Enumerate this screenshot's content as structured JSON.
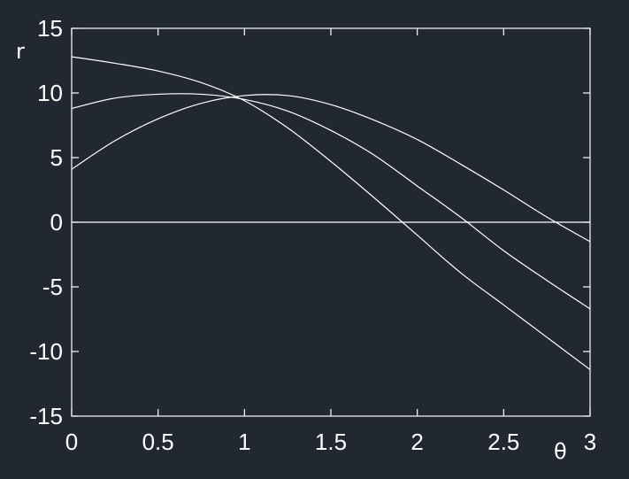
{
  "colors": {
    "background": "#222831",
    "foreground": "#ffffff"
  },
  "chart_data": {
    "type": "line",
    "title": "",
    "xlabel": "θ",
    "ylabel": "r",
    "xlim": [
      0,
      3
    ],
    "ylim": [
      -15,
      15
    ],
    "grid": false,
    "x_ticks": [
      0,
      0.5,
      1,
      1.5,
      2,
      2.5,
      3
    ],
    "x_tick_labels": [
      "0",
      "0.5",
      "1",
      "1.5",
      "2",
      "2.5",
      "3"
    ],
    "y_ticks": [
      -15,
      -10,
      -5,
      0,
      5,
      10,
      15
    ],
    "y_tick_labels": [
      "-15",
      "-10",
      "-5",
      "0",
      "5",
      "10",
      "15"
    ],
    "zero_line": 0,
    "x": [
      0,
      0.25,
      0.5,
      0.75,
      1,
      1.25,
      1.5,
      1.75,
      2,
      2.25,
      2.5,
      2.75,
      3
    ],
    "series": [
      {
        "values": [
          12.8,
          12.3,
          11.7,
          10.8,
          9.4,
          7.3,
          4.7,
          1.9,
          -1.0,
          -3.9,
          -6.4,
          -8.9,
          -11.4
        ]
      },
      {
        "values": [
          8.8,
          9.6,
          9.9,
          9.9,
          9.5,
          8.6,
          7.1,
          5.2,
          2.8,
          0.4,
          -2.2,
          -4.5,
          -6.7
        ]
      },
      {
        "values": [
          4.1,
          6.3,
          8.0,
          9.2,
          9.8,
          9.8,
          9.1,
          7.9,
          6.4,
          4.5,
          2.5,
          0.4,
          -1.5
        ]
      }
    ]
  }
}
